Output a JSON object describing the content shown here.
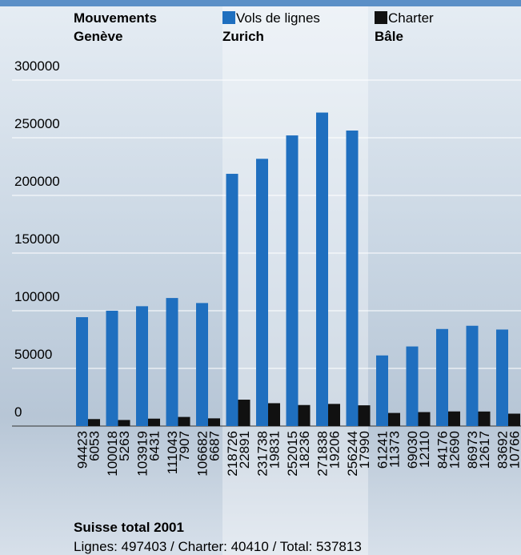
{
  "chart_data": {
    "type": "bar",
    "title": "Mouvements",
    "groups": [
      "Genève",
      "Zurich",
      "Bâle"
    ],
    "categories": [
      null,
      null,
      null,
      null,
      null,
      null,
      null,
      null,
      null,
      null,
      null,
      null,
      null,
      null,
      null
    ],
    "series": [
      {
        "name": "Vols de lignes",
        "color": "#1f6fbf",
        "values": [
          94423,
          100018,
          103919,
          111043,
          106682,
          218726,
          231738,
          252015,
          271838,
          256244,
          61241,
          69030,
          84176,
          86973,
          83692
        ]
      },
      {
        "name": "Charter",
        "color": "#111111",
        "values": [
          6053,
          5263,
          6431,
          7907,
          6687,
          22891,
          19831,
          18236,
          19206,
          17990,
          11373,
          12110,
          12690,
          12617,
          10766
        ]
      }
    ],
    "ylim": [
      0,
      300000
    ],
    "yticks": [
      0,
      50000,
      100000,
      150000,
      200000,
      250000,
      300000
    ],
    "grid": true,
    "legend": "top",
    "annotations": [
      "Suisse total 2001",
      "Lignes: 497403 / Charter: 40410 / Total: 537813"
    ]
  }
}
